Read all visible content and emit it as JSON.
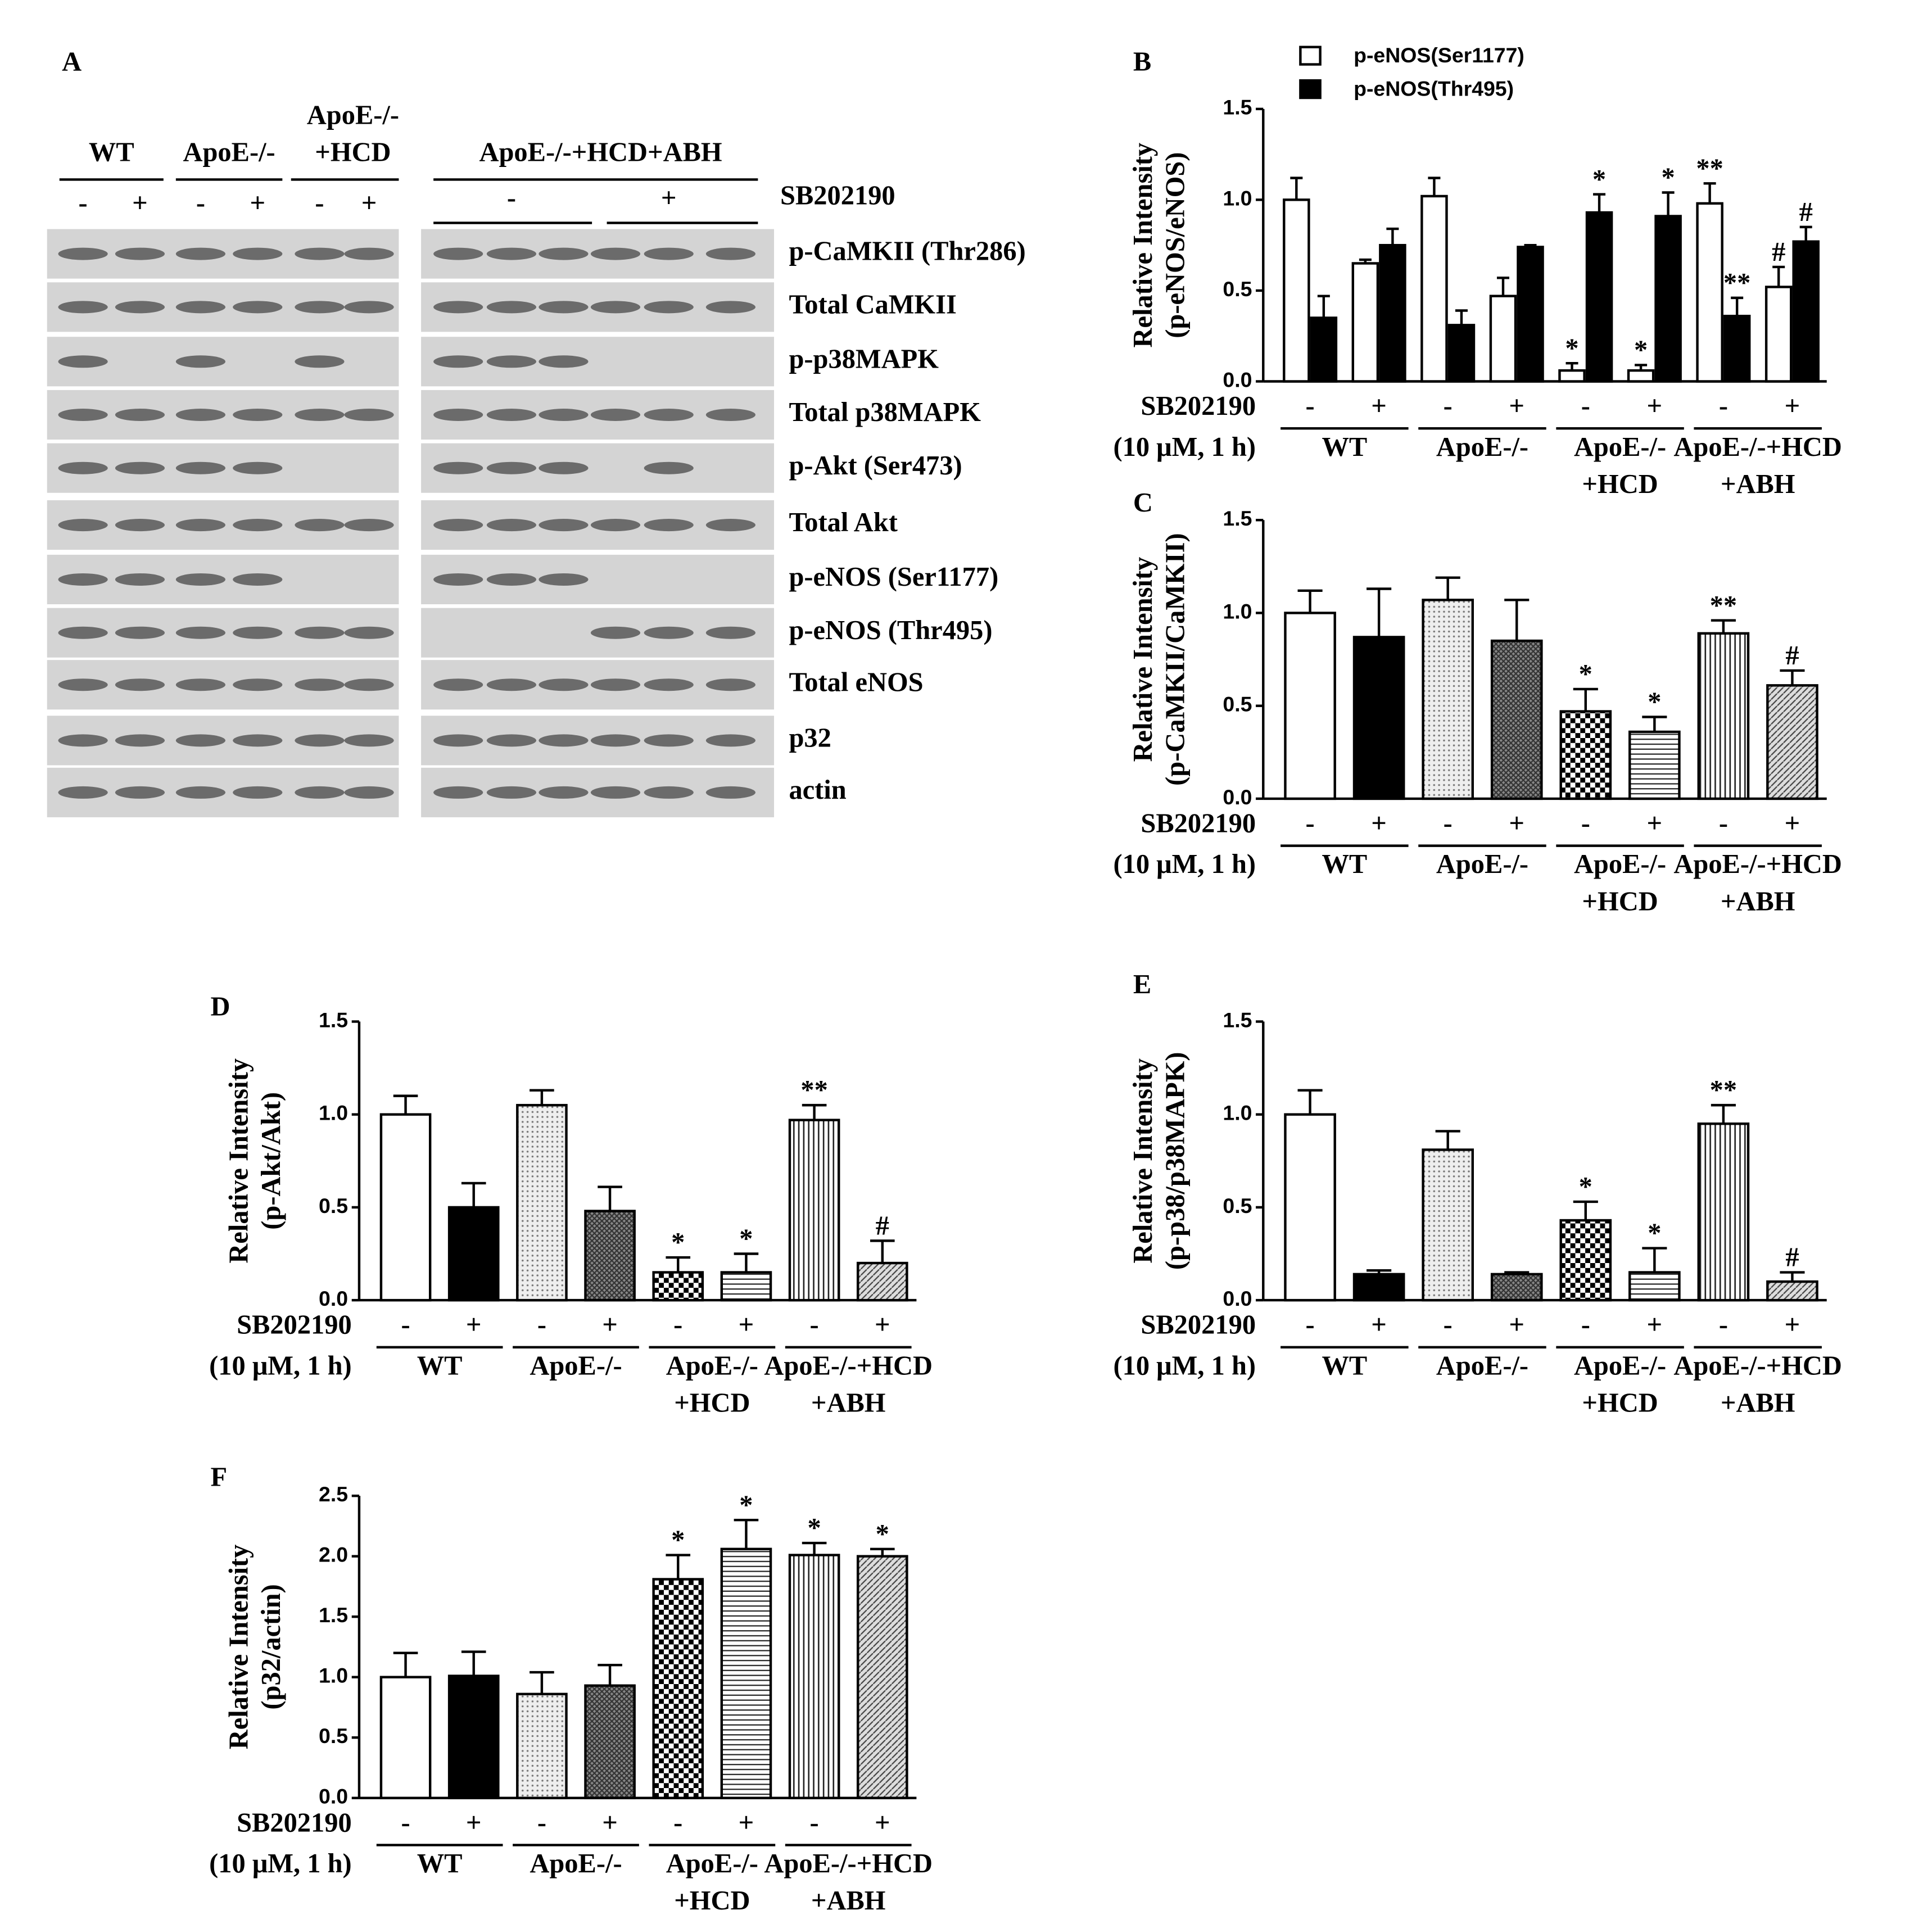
{
  "blot": {
    "title": "A",
    "groups": [
      [
        "WT"
      ],
      [
        "ApoE-/-"
      ],
      [
        "ApoE-/-",
        "+HCD"
      ],
      [
        "ApoE-/-+HCD+ABH"
      ]
    ],
    "treatment": "SB202190",
    "left_signs": [
      "-",
      "+",
      "-",
      "+",
      "-",
      "+"
    ],
    "right_signs": [
      "-",
      "+"
    ],
    "rows": [
      "p-CaMKII (Thr286)",
      "Total CaMKII",
      "p-p38MAPK",
      "Total p38MAPK",
      "p-Akt (Ser473)",
      "Total Akt",
      "p-eNOS (Ser1177)",
      "p-eNOS (Thr495)",
      "Total eNOS",
      "p32",
      "actin"
    ]
  },
  "chart_data": [
    {
      "type": "bar",
      "title": "B",
      "ylabel": [
        "Relative Intensity",
        "(p-eNOS/eNOS)"
      ],
      "xlabel": [
        "SB202190",
        "(10 μM, 1 h)"
      ],
      "categories": [
        "-",
        "+",
        "-",
        "+",
        "-",
        "+",
        "-",
        "+"
      ],
      "groups": [
        [
          "WT"
        ],
        [
          "ApoE-/-"
        ],
        [
          "ApoE-/-",
          "+HCD"
        ],
        [
          "ApoE-/-+HCD",
          "+ABH"
        ]
      ],
      "ylim": [
        0,
        1.5
      ],
      "yticks": [
        {
          "value": 0,
          "label": "0.0"
        },
        {
          "value": 0.5,
          "label": "0.5"
        },
        {
          "value": 1,
          "label": "1.0"
        },
        {
          "value": 1.5,
          "label": "1.5"
        }
      ],
      "series": [
        {
          "name": "p-eNOS(Ser1177)",
          "color": "#ffffff",
          "values": [
            1.0,
            0.65,
            1.02,
            0.47,
            0.06,
            0.06,
            0.98,
            0.52
          ],
          "errors": [
            0.12,
            0.02,
            0.1,
            0.1,
            0.04,
            0.03,
            0.11,
            0.11
          ],
          "annotations": [
            null,
            null,
            null,
            null,
            "*",
            "*",
            "**",
            "#"
          ]
        },
        {
          "name": "p-eNOS(Thr495)",
          "color": "#000000",
          "values": [
            0.35,
            0.75,
            0.31,
            0.74,
            0.93,
            0.91,
            0.36,
            0.77
          ],
          "errors": [
            0.12,
            0.09,
            0.08,
            0.01,
            0.1,
            0.13,
            0.1,
            0.08
          ],
          "annotations": [
            null,
            null,
            null,
            null,
            "*",
            "*",
            "**",
            "#"
          ]
        }
      ]
    },
    {
      "type": "bar",
      "title": "C",
      "ylabel": [
        "Relative Intensity",
        "(p-CaMKII/CaMKII)"
      ],
      "xlabel": [
        "SB202190",
        "(10 μM, 1 h)"
      ],
      "categories": [
        "-",
        "+",
        "-",
        "+",
        "-",
        "+",
        "-",
        "+"
      ],
      "groups": [
        [
          "WT"
        ],
        [
          "ApoE-/-"
        ],
        [
          "ApoE-/-",
          "+HCD"
        ],
        [
          "ApoE-/-+HCD",
          "+ABH"
        ]
      ],
      "ylim": [
        0,
        1.5
      ],
      "yticks": [
        {
          "value": 0,
          "label": "0.0"
        },
        {
          "value": 0.5,
          "label": "0.5"
        },
        {
          "value": 1,
          "label": "1.0"
        },
        {
          "value": 1.5,
          "label": "1.5"
        }
      ],
      "patterns": [
        "white",
        "black",
        "dots",
        "dense",
        "checker",
        "hlines",
        "vlines",
        "diag"
      ],
      "values": [
        1.0,
        0.87,
        1.07,
        0.85,
        0.47,
        0.36,
        0.89,
        0.61
      ],
      "errors": [
        0.12,
        0.26,
        0.12,
        0.22,
        0.12,
        0.08,
        0.07,
        0.08
      ],
      "annotations": [
        null,
        null,
        null,
        null,
        "*",
        "*",
        "**",
        "#"
      ]
    },
    {
      "type": "bar",
      "title": "D",
      "ylabel": [
        "Relative Intensity",
        "(p-Akt/Akt)"
      ],
      "xlabel": [
        "SB202190",
        "(10 μM, 1 h)"
      ],
      "categories": [
        "-",
        "+",
        "-",
        "+",
        "-",
        "+",
        "-",
        "+"
      ],
      "groups": [
        [
          "WT"
        ],
        [
          "ApoE-/-"
        ],
        [
          "ApoE-/-",
          "+HCD"
        ],
        [
          "ApoE-/-+HCD",
          "+ABH"
        ]
      ],
      "ylim": [
        0,
        1.5
      ],
      "yticks": [
        {
          "value": 0,
          "label": "0.0"
        },
        {
          "value": 0.5,
          "label": "0.5"
        },
        {
          "value": 1,
          "label": "1.0"
        },
        {
          "value": 1.5,
          "label": "1.5"
        }
      ],
      "patterns": [
        "white",
        "black",
        "dots",
        "dense",
        "checker",
        "hlines",
        "vlines",
        "diag"
      ],
      "values": [
        1.0,
        0.5,
        1.05,
        0.48,
        0.15,
        0.15,
        0.97,
        0.2
      ],
      "errors": [
        0.1,
        0.13,
        0.08,
        0.13,
        0.08,
        0.1,
        0.08,
        0.12
      ],
      "annotations": [
        null,
        null,
        null,
        null,
        "*",
        "*",
        "**",
        "#"
      ]
    },
    {
      "type": "bar",
      "title": "E",
      "ylabel": [
        "Relative Intensity",
        "(p-p38/p38MAPK)"
      ],
      "xlabel": [
        "SB202190",
        "(10 μM, 1 h)"
      ],
      "categories": [
        "-",
        "+",
        "-",
        "+",
        "-",
        "+",
        "-",
        "+"
      ],
      "groups": [
        [
          "WT"
        ],
        [
          "ApoE-/-"
        ],
        [
          "ApoE-/-",
          "+HCD"
        ],
        [
          "ApoE-/-+HCD",
          "+ABH"
        ]
      ],
      "ylim": [
        0,
        1.5
      ],
      "yticks": [
        {
          "value": 0,
          "label": "0.0"
        },
        {
          "value": 0.5,
          "label": "0.5"
        },
        {
          "value": 1,
          "label": "1.0"
        },
        {
          "value": 1.5,
          "label": "1.5"
        }
      ],
      "patterns": [
        "white",
        "black",
        "dots",
        "dense",
        "checker",
        "hlines",
        "vlines",
        "diag"
      ],
      "values": [
        1.0,
        0.14,
        0.81,
        0.14,
        0.43,
        0.15,
        0.95,
        0.1
      ],
      "errors": [
        0.13,
        0.02,
        0.1,
        0.01,
        0.1,
        0.13,
        0.1,
        0.05
      ],
      "annotations": [
        null,
        null,
        null,
        null,
        "*",
        "*",
        "**",
        "#"
      ]
    },
    {
      "type": "bar",
      "title": "F",
      "ylabel": [
        "Relative Intensity",
        "(p32/actin)"
      ],
      "xlabel": [
        "SB202190",
        "(10 μM, 1 h)"
      ],
      "categories": [
        "-",
        "+",
        "-",
        "+",
        "-",
        "+",
        "-",
        "+"
      ],
      "groups": [
        [
          "WT"
        ],
        [
          "ApoE-/-"
        ],
        [
          "ApoE-/-",
          "+HCD"
        ],
        [
          "ApoE-/-+HCD",
          "+ABH"
        ]
      ],
      "ylim": [
        0,
        2.5
      ],
      "yticks": [
        {
          "value": 0,
          "label": "0.0"
        },
        {
          "value": 0.5,
          "label": "0.5"
        },
        {
          "value": 1,
          "label": "1.0"
        },
        {
          "value": 1.5,
          "label": "1.5"
        },
        {
          "value": 2,
          "label": "2.0"
        },
        {
          "value": 2.5,
          "label": "2.5"
        }
      ],
      "patterns": [
        "white",
        "black",
        "dots",
        "dense",
        "checker",
        "hlines",
        "vlines",
        "diag"
      ],
      "values": [
        1.0,
        1.01,
        0.86,
        0.93,
        1.81,
        2.06,
        2.01,
        2.0
      ],
      "errors": [
        0.2,
        0.2,
        0.18,
        0.17,
        0.2,
        0.24,
        0.1,
        0.06
      ],
      "annotations": [
        null,
        null,
        null,
        null,
        "*",
        "*",
        "*",
        "*"
      ]
    }
  ]
}
